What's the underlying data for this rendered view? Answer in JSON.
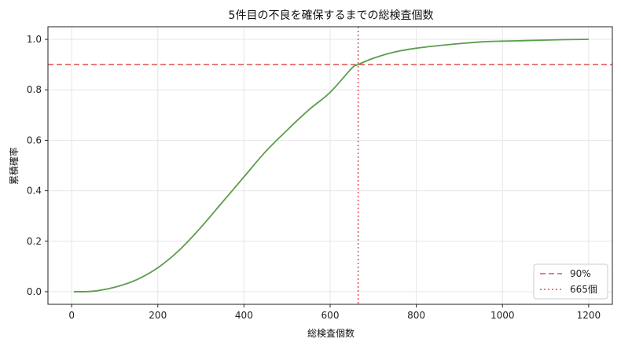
{
  "chart_data": {
    "type": "line",
    "title": "5件目の不良を確保するまでの総検査個数",
    "xlabel": "総検査個数",
    "ylabel": "累積確率",
    "xlim": [
      -55,
      1255
    ],
    "ylim": [
      -0.05,
      1.05
    ],
    "xticks": [
      0,
      200,
      400,
      600,
      800,
      1000,
      1200
    ],
    "yticks": [
      0.0,
      0.2,
      0.4,
      0.6,
      0.8,
      1.0
    ],
    "xtick_labels": [
      "0",
      "200",
      "400",
      "600",
      "800",
      "1000",
      "1200"
    ],
    "ytick_labels": [
      "0.0",
      "0.2",
      "0.4",
      "0.6",
      "0.8",
      "1.0"
    ],
    "grid": true,
    "legend_position": "bottom-right",
    "series": [
      {
        "color": "#5a9e4b",
        "style": "solid",
        "x": [
          5,
          50,
          100,
          150,
          200,
          250,
          300,
          350,
          400,
          450,
          500,
          550,
          600,
          650,
          665,
          700,
          750,
          800,
          850,
          900,
          950,
          1000,
          1050,
          1100,
          1150,
          1200
        ],
        "y": [
          0.0,
          0.002,
          0.018,
          0.047,
          0.095,
          0.165,
          0.255,
          0.355,
          0.455,
          0.555,
          0.64,
          0.72,
          0.79,
          0.885,
          0.9,
          0.925,
          0.95,
          0.965,
          0.975,
          0.983,
          0.99,
          0.993,
          0.995,
          0.997,
          0.999,
          1.0
        ]
      }
    ],
    "reference_lines": [
      {
        "orientation": "horizontal",
        "value": 0.9,
        "color": "#e05050",
        "style": "dashed",
        "label": "90%"
      },
      {
        "orientation": "vertical",
        "value": 665,
        "color": "#e05050",
        "style": "dotted",
        "label": "665個"
      }
    ]
  }
}
